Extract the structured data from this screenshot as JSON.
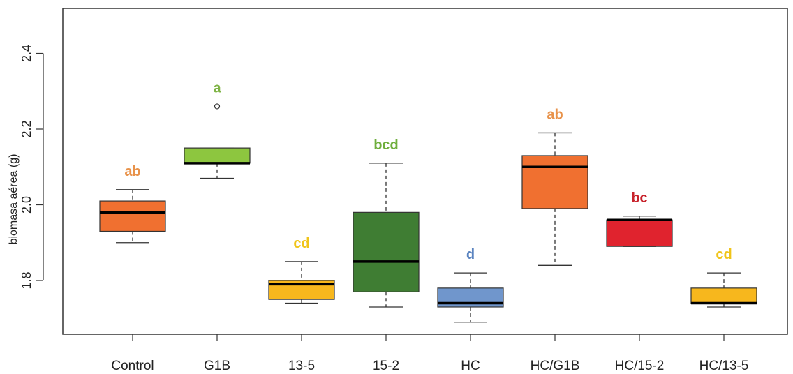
{
  "chart_data": {
    "type": "boxplot",
    "title": "",
    "xlabel": "",
    "ylabel": "biomasa aérea (g)",
    "ylim": [
      1.66,
      2.5
    ],
    "yticks": [
      1.8,
      2.0,
      2.2,
      2.4
    ],
    "ytick_labels": [
      "1.8",
      "2.0",
      "2.2",
      "2.4"
    ],
    "grid": false,
    "categories": [
      "Control",
      "G1B",
      "13-5",
      "15-2",
      "HC",
      "HC/G1B",
      "HC/15-2",
      "HC/13-5"
    ],
    "boxes": [
      {
        "category": "Control",
        "whisker_low": 1.9,
        "q1": 1.93,
        "median": 1.98,
        "q3": 2.01,
        "whisker_high": 2.04,
        "outliers": [],
        "fill": "#F07030",
        "letter": "ab",
        "letter_color": "#E8924A"
      },
      {
        "category": "G1B",
        "whisker_low": 2.07,
        "q1": 2.11,
        "median": 2.11,
        "q3": 2.15,
        "whisker_high": 2.15,
        "outliers": [
          2.26
        ],
        "fill": "#8DC63F",
        "letter": "a",
        "letter_color": "#7DB343"
      },
      {
        "category": "13-5",
        "whisker_low": 1.74,
        "q1": 1.75,
        "median": 1.79,
        "q3": 1.8,
        "whisker_high": 1.85,
        "outliers": [],
        "fill": "#F7B71D",
        "letter": "cd",
        "letter_color": "#F0C419"
      },
      {
        "category": "15-2",
        "whisker_low": 1.73,
        "q1": 1.77,
        "median": 1.85,
        "q3": 1.98,
        "whisker_high": 2.11,
        "outliers": [],
        "fill": "#3F7D33",
        "letter": "bcd",
        "letter_color": "#6FAE3D"
      },
      {
        "category": "HC",
        "whisker_low": 1.69,
        "q1": 1.73,
        "median": 1.74,
        "q3": 1.78,
        "whisker_high": 1.82,
        "outliers": [],
        "fill": "#7096CC",
        "letter": "d",
        "letter_color": "#5B84C0"
      },
      {
        "category": "HC/G1B",
        "whisker_low": 1.84,
        "q1": 1.99,
        "median": 2.1,
        "q3": 2.13,
        "whisker_high": 2.19,
        "outliers": [],
        "fill": "#F07030",
        "letter": "ab",
        "letter_color": "#E8924A"
      },
      {
        "category": "HC/15-2",
        "whisker_low": 1.89,
        "q1": 1.89,
        "median": 1.96,
        "q3": 1.96,
        "whisker_high": 1.97,
        "outliers": [],
        "fill": "#E0232E",
        "letter": "bc",
        "letter_color": "#C8232C"
      },
      {
        "category": "HC/13-5",
        "whisker_low": 1.73,
        "q1": 1.74,
        "median": 1.74,
        "q3": 1.78,
        "whisker_high": 1.82,
        "outliers": [],
        "fill": "#F7B71D",
        "letter": "cd",
        "letter_color": "#F0C419"
      }
    ]
  }
}
